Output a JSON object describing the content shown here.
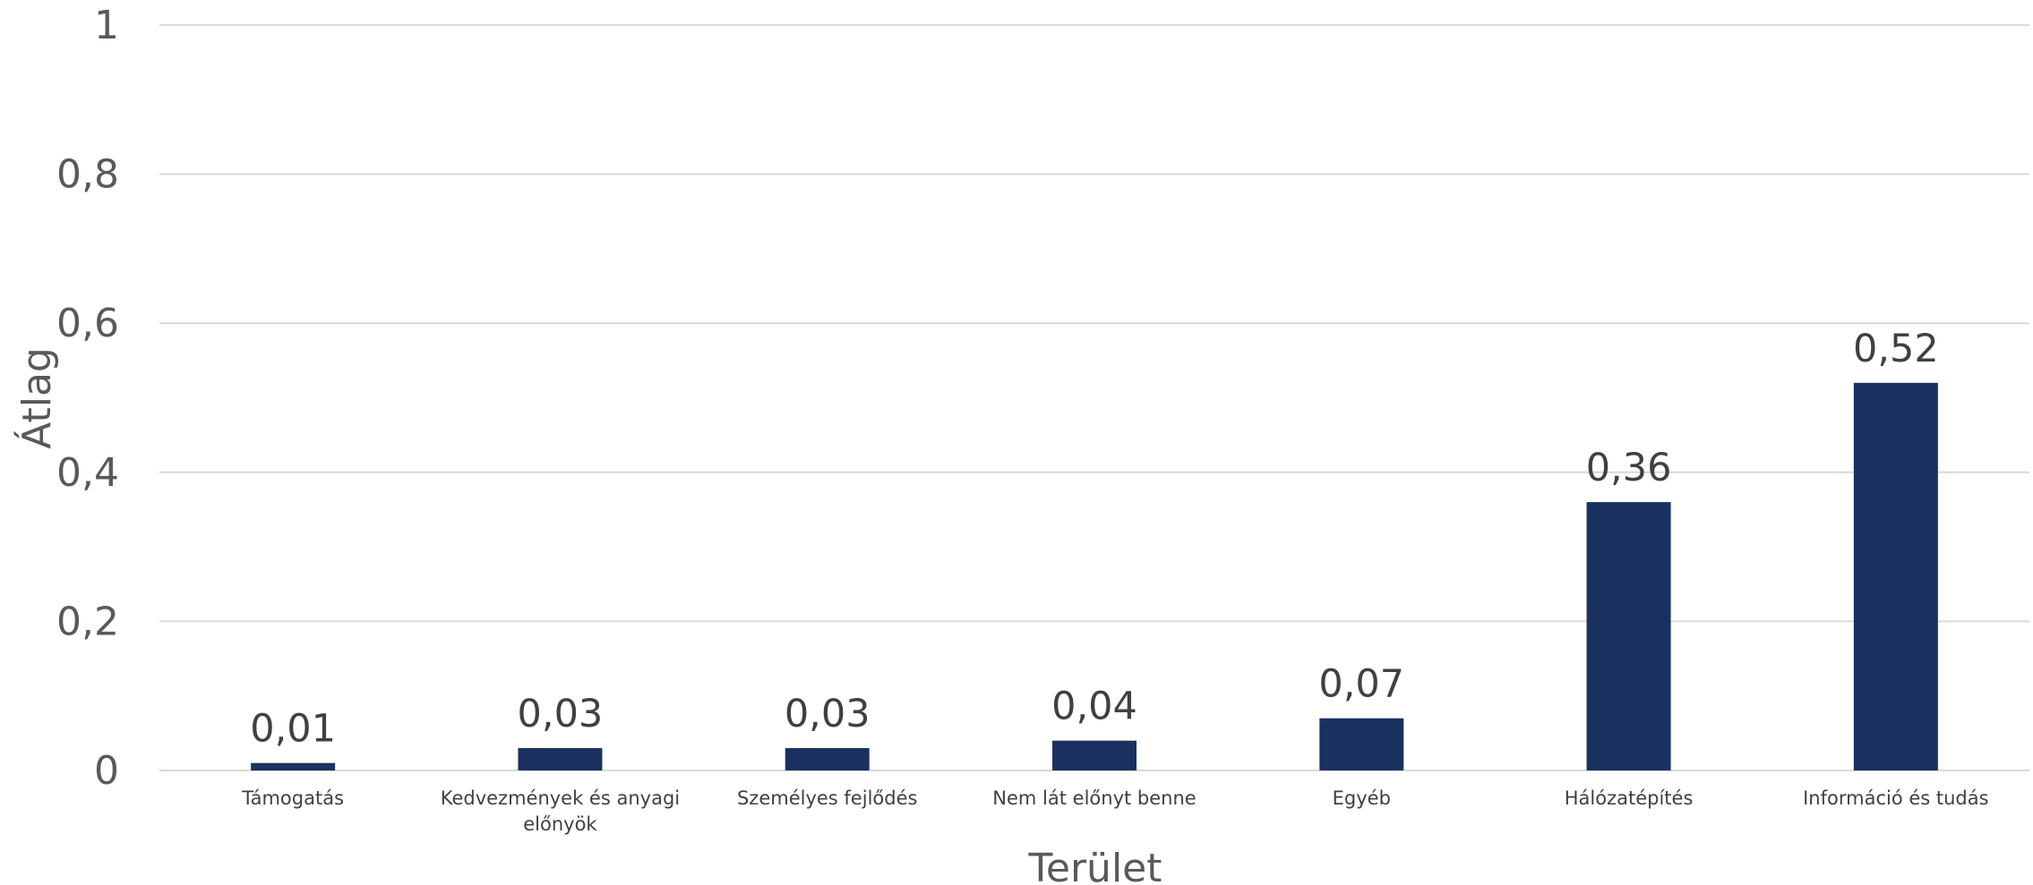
{
  "chart_data": {
    "type": "bar",
    "title": "",
    "xlabel": "Terület",
    "ylabel": "Átlag",
    "ylim": [
      0,
      1
    ],
    "y_ticks": [
      "0",
      "0,2",
      "0,4",
      "0,6",
      "0,8",
      "1"
    ],
    "y_tick_values": [
      0,
      0.2,
      0.4,
      0.6,
      0.8,
      1
    ],
    "grid": true,
    "legend": "none",
    "categories": [
      "Támogatás",
      "Kedvezmények és anyagi előnyök",
      "Személyes fejlődés",
      "Nem lát előnyt benne",
      "Egyéb",
      "Hálózatépítés",
      "Információ és tudás"
    ],
    "category_lines": [
      [
        "Támogatás"
      ],
      [
        "Kedvezmények és anyagi",
        "előnyök"
      ],
      [
        "Személyes fejlődés"
      ],
      [
        "Nem lát előnyt benne"
      ],
      [
        "Egyéb"
      ],
      [
        "Hálózatépítés"
      ],
      [
        "Információ és tudás"
      ]
    ],
    "values": [
      0.01,
      0.03,
      0.03,
      0.04,
      0.07,
      0.36,
      0.52
    ],
    "data_labels": [
      "0,01",
      "0,03",
      "0,03",
      "0,04",
      "0,07",
      "0,36",
      "0,52"
    ],
    "colors": {
      "bar": "#1b3160",
      "grid": "#d9d9d9"
    }
  }
}
